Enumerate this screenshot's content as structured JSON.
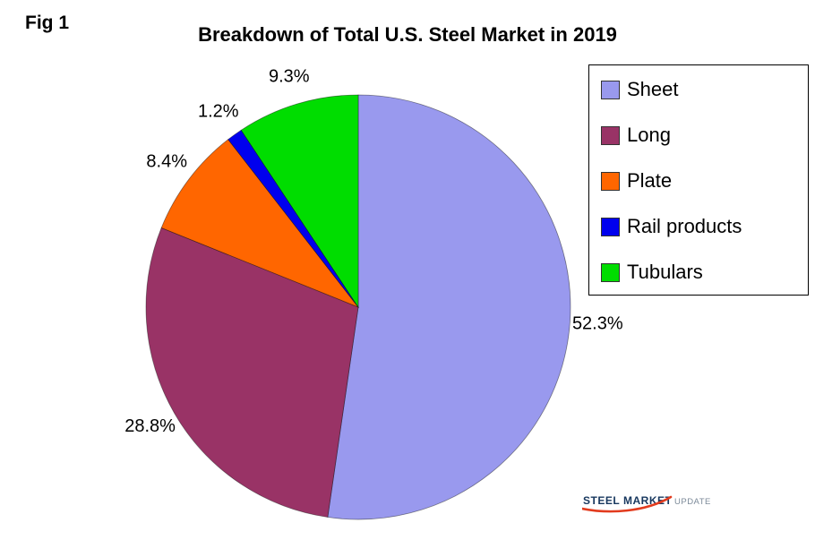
{
  "fig_label": "Fig 1",
  "title": "Breakdown of Total U.S. Steel Market in 2019",
  "legend": {
    "items": [
      {
        "label": "Sheet",
        "color": "#9999EE"
      },
      {
        "label": "Long",
        "color": "#993366"
      },
      {
        "label": "Plate",
        "color": "#FF6600"
      },
      {
        "label": "Rail products",
        "color": "#0000EE"
      },
      {
        "label": "Tubulars",
        "color": "#00DD00"
      }
    ]
  },
  "chart_data": {
    "type": "pie",
    "title": "Breakdown of Total U.S. Steel Market in 2019",
    "categories": [
      "Sheet",
      "Long",
      "Plate",
      "Rail products",
      "Tubulars"
    ],
    "values": [
      52.3,
      28.8,
      8.4,
      1.2,
      9.3
    ],
    "labels": [
      "52.3%",
      "28.8%",
      "8.4%",
      "1.2%",
      "9.3%"
    ],
    "colors": [
      "#9999EE",
      "#993366",
      "#FF6600",
      "#0000EE",
      "#00DD00"
    ],
    "start_angle_deg": -90,
    "direction": "clockwise",
    "legend_position": "right",
    "unit": "percent"
  },
  "logo": {
    "steel": "STEEL",
    "market": "MARKET",
    "update": "UPDATE",
    "accent_color": "#E23B1E",
    "text_color": "#17375E",
    "update_color": "#7C8A99"
  }
}
